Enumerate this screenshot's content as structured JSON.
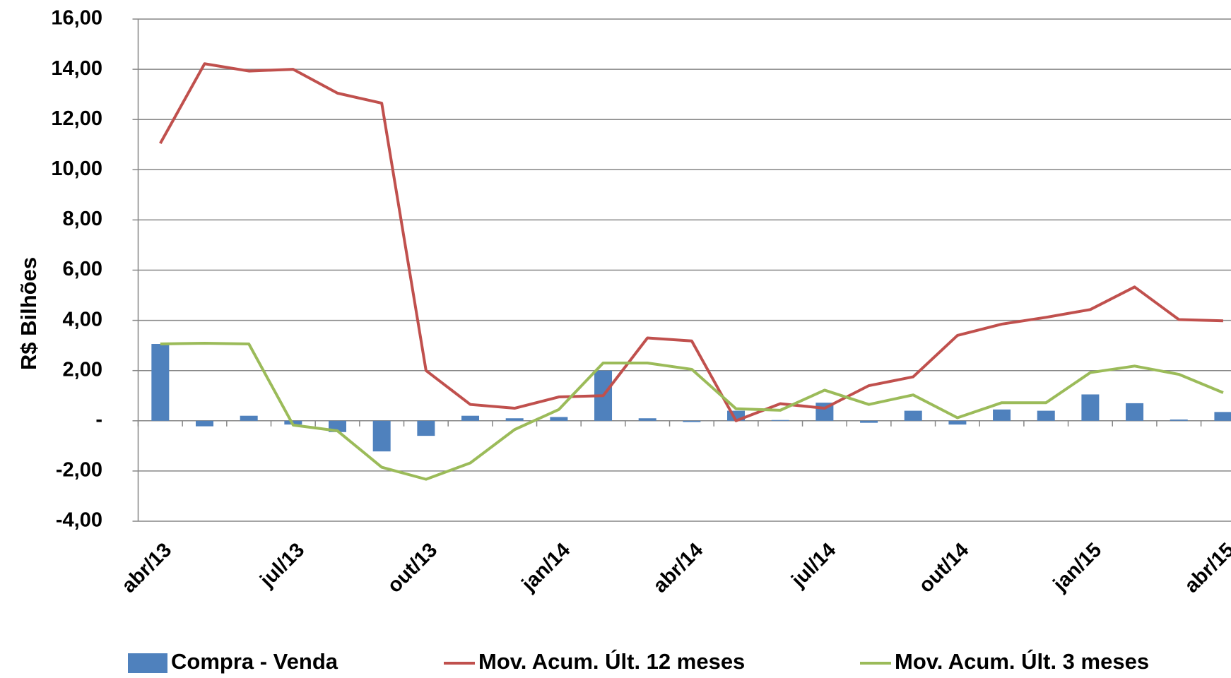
{
  "chart_data": {
    "type": "bar",
    "y_label": "R$ Bilhões",
    "categories": [
      "abr/13",
      null,
      null,
      "jul/13",
      null,
      null,
      "out/13",
      null,
      null,
      "jan/14",
      null,
      null,
      "abr/14",
      null,
      null,
      "jul/14",
      null,
      null,
      "out/14",
      null,
      null,
      "jan/15",
      null,
      null,
      "abr/15"
    ],
    "series": [
      {
        "name": "Compra - Venda",
        "type": "bar",
        "color": "#4f81bd",
        "values": [
          3.06,
          -0.22,
          0.2,
          -0.15,
          -0.45,
          -1.22,
          -0.6,
          0.2,
          0.1,
          0.15,
          2.0,
          0.1,
          -0.05,
          0.4,
          0.03,
          0.72,
          -0.08,
          0.4,
          -0.15,
          0.45,
          0.4,
          1.05,
          0.7,
          0.05,
          0.35
        ]
      },
      {
        "name": "Mov. Acum. Últ. 12 meses",
        "type": "line",
        "color": "#c0504d",
        "values": [
          11.05,
          14.22,
          13.93,
          14.0,
          13.05,
          12.65,
          2.0,
          0.65,
          0.5,
          0.95,
          1.0,
          3.3,
          3.18,
          0.0,
          0.68,
          0.5,
          1.4,
          1.75,
          3.4,
          3.85,
          4.12,
          4.43,
          5.33,
          4.03,
          3.98
        ]
      },
      {
        "name": "Mov. Acum. Últ. 3 meses",
        "type": "line",
        "color": "#9bbb59",
        "values": [
          3.06,
          3.09,
          3.06,
          -0.17,
          -0.4,
          -1.85,
          -2.33,
          -1.68,
          -0.35,
          0.45,
          2.3,
          2.3,
          2.05,
          0.48,
          0.42,
          1.22,
          0.65,
          1.03,
          0.12,
          0.72,
          0.72,
          1.92,
          2.18,
          1.85,
          1.12
        ]
      }
    ],
    "ylim": [
      -4,
      16
    ],
    "yticks": [
      {
        "value": -4,
        "label": "-4,00"
      },
      {
        "value": -2,
        "label": "-2,00"
      },
      {
        "value": 0,
        "label": "-"
      },
      {
        "value": 2,
        "label": "2,00"
      },
      {
        "value": 4,
        "label": "4,00"
      },
      {
        "value": 6,
        "label": "6,00"
      },
      {
        "value": 8,
        "label": "8,00"
      },
      {
        "value": 10,
        "label": "10,00"
      },
      {
        "value": 12,
        "label": "12,00"
      },
      {
        "value": 14,
        "label": "14,00"
      },
      {
        "value": 16,
        "label": "16,00"
      }
    ],
    "grid": true,
    "legend": "bottom"
  }
}
